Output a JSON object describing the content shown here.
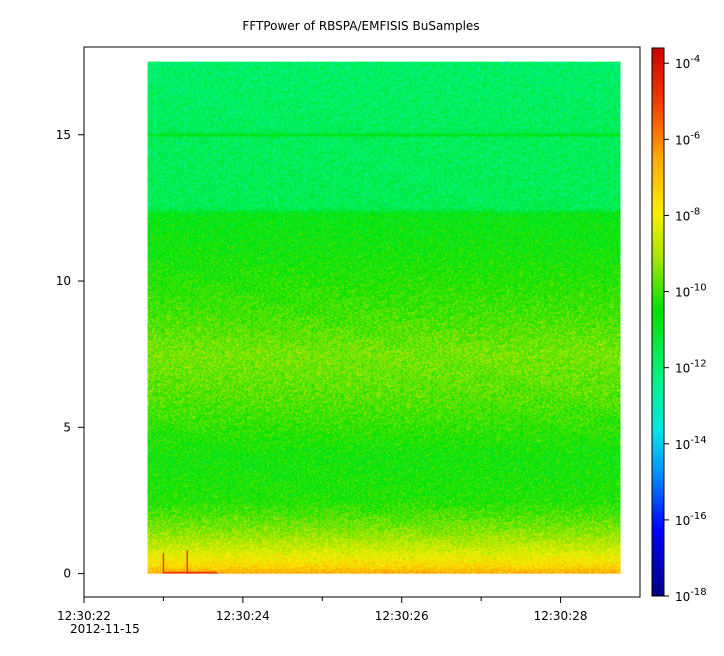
{
  "chart_data": {
    "type": "heatmap",
    "title": "FFTPower of RBSPA/EMFISIS  BuSamples",
    "xlabel": "",
    "ylabel": "",
    "x_range": [
      "12:30:22.0",
      "12:30:29.0"
    ],
    "x_date": "2012-11-15",
    "x_tick_labels": [
      "12:30:22",
      "12:30:24",
      "12:30:26",
      "12:30:28"
    ],
    "x_tick_times_s": [
      22,
      24,
      26,
      28
    ],
    "x_minor_tick_times_s": [
      23,
      25,
      27
    ],
    "ylim": [
      -0.8,
      18.0
    ],
    "y_ticks": [
      0,
      5,
      10,
      15
    ],
    "data_x_range_s": [
      22.8,
      28.75
    ],
    "data_y_range": [
      0,
      17.5
    ],
    "intensity_profile": [
      {
        "y": 0.0,
        "log10_power": -6.5
      },
      {
        "y": 0.3,
        "log10_power": -7.5
      },
      {
        "y": 0.8,
        "log10_power": -8.5
      },
      {
        "y": 1.5,
        "log10_power": -9.4
      },
      {
        "y": 2.5,
        "log10_power": -10.3
      },
      {
        "y": 4.0,
        "log10_power": -10.5
      },
      {
        "y": 6.0,
        "log10_power": -9.8
      },
      {
        "y": 7.5,
        "log10_power": -9.5
      },
      {
        "y": 9.0,
        "log10_power": -10.0
      },
      {
        "y": 11.0,
        "log10_power": -10.5
      },
      {
        "y": 12.3,
        "log10_power": -10.7
      },
      {
        "y": 12.5,
        "log10_power": -11.6
      },
      {
        "y": 14.9,
        "log10_power": -11.7
      },
      {
        "y": 15.0,
        "log10_power": -10.9
      },
      {
        "y": 15.1,
        "log10_power": -11.7
      },
      {
        "y": 17.5,
        "log10_power": -11.9
      }
    ],
    "features": [
      {
        "type": "spike",
        "x_s": 23.0,
        "y_top": 0.7,
        "log10_power": -5.0
      },
      {
        "type": "spike",
        "x_s": 23.3,
        "y_top": 0.8,
        "log10_power": -5.0
      },
      {
        "type": "line",
        "y": 15.0,
        "log10_power": -10.9
      }
    ],
    "colorbar": {
      "scale": "log",
      "range": [
        -18,
        -3.6
      ],
      "ticks": [
        -4,
        -6,
        -8,
        -10,
        -12,
        -14,
        -16,
        -18
      ],
      "tick_labels": [
        "10",
        "10",
        "10",
        "10",
        "10",
        "10",
        "10",
        "10"
      ],
      "tick_exponents": [
        "-4",
        "-6",
        "-8",
        "-10",
        "-12",
        "-14",
        "-16",
        "-18"
      ],
      "colormap": "rainbow"
    },
    "legend": "none",
    "grid": false
  }
}
